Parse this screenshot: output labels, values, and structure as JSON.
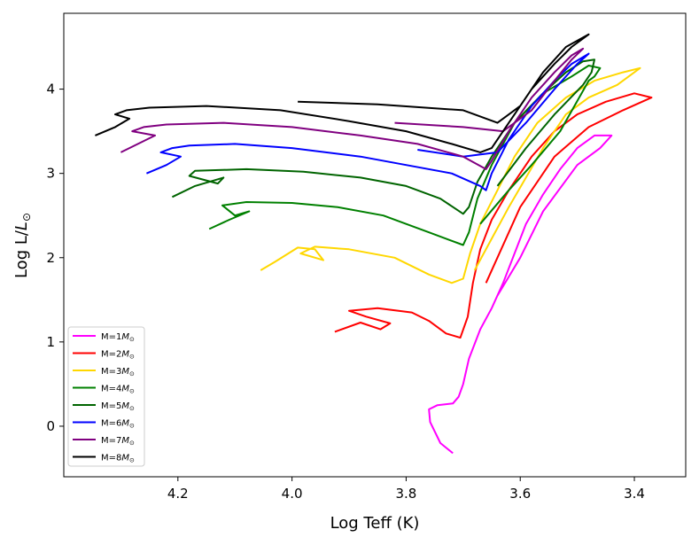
{
  "chart_data": {
    "type": "line",
    "title": "",
    "xlabel": "Log Teff (K)",
    "ylabel": {
      "main": "Log L/",
      "italic": "L",
      "sub": "⊙"
    },
    "xlim": [
      4.4,
      3.31
    ],
    "ylim": [
      -0.6,
      4.9
    ],
    "xticks": [
      {
        "v": 4.2,
        "label": "4.2"
      },
      {
        "v": 4.0,
        "label": "4.0"
      },
      {
        "v": 3.8,
        "label": "3.8"
      },
      {
        "v": 3.6,
        "label": "3.6"
      },
      {
        "v": 3.4,
        "label": "3.4"
      }
    ],
    "yticks": [
      {
        "v": 0,
        "label": "0"
      },
      {
        "v": 1,
        "label": "1"
      },
      {
        "v": 2,
        "label": "2"
      },
      {
        "v": 3,
        "label": "3"
      },
      {
        "v": 4,
        "label": "4"
      }
    ],
    "legend_position": "lower-left",
    "series": [
      {
        "name": "M=1",
        "label_prefix": "M=1",
        "label_unit": "M",
        "label_sub": "⊙",
        "color": "#ff00ff",
        "points": [
          [
            3.718,
            -0.32
          ],
          [
            3.74,
            -0.2
          ],
          [
            3.758,
            0.05
          ],
          [
            3.76,
            0.2
          ],
          [
            3.745,
            0.25
          ],
          [
            3.718,
            0.27
          ],
          [
            3.708,
            0.35
          ],
          [
            3.7,
            0.5
          ],
          [
            3.69,
            0.8
          ],
          [
            3.67,
            1.15
          ],
          [
            3.65,
            1.4
          ],
          [
            3.63,
            1.7
          ],
          [
            3.61,
            2.05
          ],
          [
            3.59,
            2.4
          ],
          [
            3.56,
            2.75
          ],
          [
            3.53,
            3.05
          ],
          [
            3.5,
            3.3
          ],
          [
            3.47,
            3.45
          ],
          [
            3.44,
            3.45
          ],
          [
            3.46,
            3.3
          ],
          [
            3.5,
            3.1
          ],
          [
            3.56,
            2.55
          ],
          [
            3.6,
            2.0
          ],
          [
            3.64,
            1.55
          ]
        ]
      },
      {
        "name": "M=2",
        "label_prefix": "M=2",
        "label_unit": "M",
        "label_sub": "⊙",
        "color": "#ff0000",
        "points": [
          [
            3.925,
            1.12
          ],
          [
            3.88,
            1.23
          ],
          [
            3.845,
            1.15
          ],
          [
            3.828,
            1.22
          ],
          [
            3.87,
            1.3
          ],
          [
            3.9,
            1.37
          ],
          [
            3.85,
            1.4
          ],
          [
            3.79,
            1.35
          ],
          [
            3.76,
            1.25
          ],
          [
            3.73,
            1.1
          ],
          [
            3.705,
            1.05
          ],
          [
            3.692,
            1.3
          ],
          [
            3.683,
            1.7
          ],
          [
            3.67,
            2.1
          ],
          [
            3.65,
            2.45
          ],
          [
            3.62,
            2.8
          ],
          [
            3.58,
            3.2
          ],
          [
            3.54,
            3.5
          ],
          [
            3.5,
            3.7
          ],
          [
            3.45,
            3.85
          ],
          [
            3.4,
            3.95
          ],
          [
            3.37,
            3.9
          ],
          [
            3.42,
            3.75
          ],
          [
            3.48,
            3.55
          ],
          [
            3.54,
            3.2
          ],
          [
            3.6,
            2.6
          ],
          [
            3.66,
            1.7
          ]
        ]
      },
      {
        "name": "M=3",
        "label_prefix": "M=3",
        "label_unit": "M",
        "label_sub": "⊙",
        "color": "#ffd700",
        "points": [
          [
            4.055,
            1.85
          ],
          [
            4.03,
            1.95
          ],
          [
            3.99,
            2.12
          ],
          [
            3.96,
            2.1
          ],
          [
            3.945,
            1.97
          ],
          [
            3.985,
            2.05
          ],
          [
            3.96,
            2.13
          ],
          [
            3.9,
            2.1
          ],
          [
            3.82,
            2.0
          ],
          [
            3.76,
            1.8
          ],
          [
            3.72,
            1.7
          ],
          [
            3.7,
            1.75
          ],
          [
            3.688,
            2.05
          ],
          [
            3.67,
            2.4
          ],
          [
            3.64,
            2.8
          ],
          [
            3.61,
            3.2
          ],
          [
            3.57,
            3.6
          ],
          [
            3.52,
            3.9
          ],
          [
            3.47,
            4.1
          ],
          [
            3.42,
            4.2
          ],
          [
            3.39,
            4.25
          ],
          [
            3.43,
            4.05
          ],
          [
            3.48,
            3.9
          ],
          [
            3.52,
            3.7
          ],
          [
            3.56,
            3.3
          ],
          [
            3.62,
            2.6
          ],
          [
            3.68,
            1.85
          ]
        ]
      },
      {
        "name": "M=4",
        "label_prefix": "M=4",
        "label_unit": "M",
        "label_sub": "⊙",
        "color": "#008000",
        "points": [
          [
            4.145,
            2.34
          ],
          [
            4.11,
            2.45
          ],
          [
            4.075,
            2.55
          ],
          [
            4.1,
            2.5
          ],
          [
            4.122,
            2.62
          ],
          [
            4.08,
            2.66
          ],
          [
            4.0,
            2.65
          ],
          [
            3.92,
            2.6
          ],
          [
            3.84,
            2.5
          ],
          [
            3.76,
            2.3
          ],
          [
            3.7,
            2.15
          ],
          [
            3.69,
            2.3
          ],
          [
            3.675,
            2.7
          ],
          [
            3.65,
            3.1
          ],
          [
            3.61,
            3.6
          ],
          [
            3.56,
            3.95
          ],
          [
            3.51,
            4.15
          ],
          [
            3.48,
            4.28
          ],
          [
            3.46,
            4.25
          ],
          [
            3.47,
            4.15
          ],
          [
            3.48,
            4.1
          ],
          [
            3.53,
            3.5
          ],
          [
            3.58,
            3.1
          ],
          [
            3.62,
            2.8
          ],
          [
            3.67,
            2.4
          ]
        ]
      },
      {
        "name": "M=5",
        "label_prefix": "M=5",
        "label_unit": "M",
        "label_sub": "⊙",
        "color": "#006400",
        "points": [
          [
            4.21,
            2.72
          ],
          [
            4.17,
            2.85
          ],
          [
            4.12,
            2.95
          ],
          [
            4.13,
            2.88
          ],
          [
            4.18,
            2.97
          ],
          [
            4.17,
            3.03
          ],
          [
            4.08,
            3.05
          ],
          [
            3.98,
            3.02
          ],
          [
            3.88,
            2.95
          ],
          [
            3.8,
            2.85
          ],
          [
            3.74,
            2.7
          ],
          [
            3.7,
            2.52
          ],
          [
            3.69,
            2.6
          ],
          [
            3.675,
            2.9
          ],
          [
            3.65,
            3.2
          ],
          [
            3.61,
            3.6
          ],
          [
            3.56,
            3.95
          ],
          [
            3.52,
            4.2
          ],
          [
            3.49,
            4.33
          ],
          [
            3.47,
            4.35
          ],
          [
            3.475,
            4.2
          ],
          [
            3.49,
            4.05
          ],
          [
            3.54,
            3.7
          ],
          [
            3.59,
            3.3
          ],
          [
            3.64,
            2.85
          ]
        ]
      },
      {
        "name": "M=6",
        "label_prefix": "M=6",
        "label_unit": "M",
        "label_sub": "⊙",
        "color": "#0000ff",
        "points": [
          [
            4.255,
            3.0
          ],
          [
            4.22,
            3.1
          ],
          [
            4.195,
            3.2
          ],
          [
            4.23,
            3.25
          ],
          [
            4.21,
            3.3
          ],
          [
            4.18,
            3.33
          ],
          [
            4.1,
            3.35
          ],
          [
            4.0,
            3.3
          ],
          [
            3.88,
            3.2
          ],
          [
            3.8,
            3.1
          ],
          [
            3.72,
            3.0
          ],
          [
            3.67,
            2.85
          ],
          [
            3.66,
            2.8
          ],
          [
            3.65,
            3.0
          ],
          [
            3.62,
            3.4
          ],
          [
            3.58,
            3.8
          ],
          [
            3.54,
            4.1
          ],
          [
            3.51,
            4.3
          ],
          [
            3.48,
            4.42
          ],
          [
            3.5,
            4.3
          ],
          [
            3.54,
            4.0
          ],
          [
            3.59,
            3.6
          ],
          [
            3.64,
            3.25
          ],
          [
            3.7,
            3.2
          ],
          [
            3.78,
            3.28
          ]
        ]
      },
      {
        "name": "M=7",
        "label_prefix": "M=7",
        "label_unit": "M",
        "label_sub": "⊙",
        "color": "#800080",
        "points": [
          [
            4.3,
            3.25
          ],
          [
            4.27,
            3.35
          ],
          [
            4.24,
            3.45
          ],
          [
            4.28,
            3.5
          ],
          [
            4.26,
            3.55
          ],
          [
            4.22,
            3.58
          ],
          [
            4.12,
            3.6
          ],
          [
            4.0,
            3.55
          ],
          [
            3.88,
            3.45
          ],
          [
            3.78,
            3.35
          ],
          [
            3.7,
            3.2
          ],
          [
            3.66,
            3.05
          ],
          [
            3.65,
            3.15
          ],
          [
            3.62,
            3.5
          ],
          [
            3.58,
            3.9
          ],
          [
            3.54,
            4.2
          ],
          [
            3.51,
            4.4
          ],
          [
            3.49,
            4.48
          ],
          [
            3.51,
            4.35
          ],
          [
            3.54,
            4.1
          ],
          [
            3.58,
            3.75
          ],
          [
            3.63,
            3.5
          ],
          [
            3.7,
            3.55
          ],
          [
            3.82,
            3.6
          ]
        ]
      },
      {
        "name": "M=8",
        "label_prefix": "M=8",
        "label_unit": "M",
        "label_sub": "⊙",
        "color": "#000000",
        "points": [
          [
            4.345,
            3.45
          ],
          [
            4.31,
            3.55
          ],
          [
            4.285,
            3.65
          ],
          [
            4.31,
            3.7
          ],
          [
            4.29,
            3.75
          ],
          [
            4.25,
            3.78
          ],
          [
            4.15,
            3.8
          ],
          [
            4.02,
            3.75
          ],
          [
            3.9,
            3.62
          ],
          [
            3.8,
            3.5
          ],
          [
            3.72,
            3.35
          ],
          [
            3.67,
            3.25
          ],
          [
            3.65,
            3.3
          ],
          [
            3.62,
            3.6
          ],
          [
            3.58,
            4.0
          ],
          [
            3.54,
            4.3
          ],
          [
            3.51,
            4.5
          ],
          [
            3.48,
            4.65
          ],
          [
            3.52,
            4.5
          ],
          [
            3.56,
            4.2
          ],
          [
            3.6,
            3.8
          ],
          [
            3.64,
            3.6
          ],
          [
            3.7,
            3.75
          ],
          [
            3.85,
            3.82
          ],
          [
            3.99,
            3.85
          ]
        ]
      }
    ]
  }
}
